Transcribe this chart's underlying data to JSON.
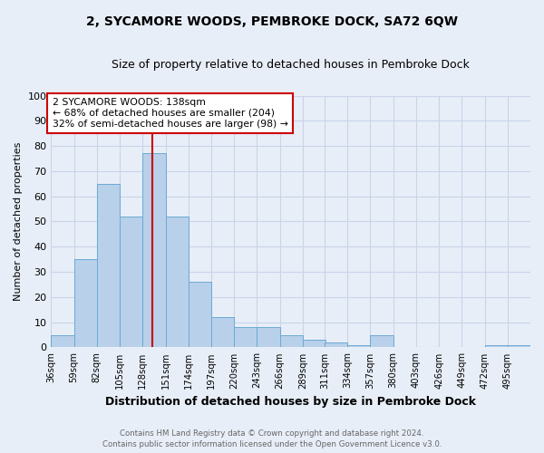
{
  "title": "2, SYCAMORE WOODS, PEMBROKE DOCK, SA72 6QW",
  "subtitle": "Size of property relative to detached houses in Pembroke Dock",
  "xlabel": "Distribution of detached houses by size in Pembroke Dock",
  "ylabel": "Number of detached properties",
  "footer_line1": "Contains HM Land Registry data © Crown copyright and database right 2024.",
  "footer_line2": "Contains public sector information licensed under the Open Government Licence v3.0.",
  "bins": [
    36,
    59,
    82,
    105,
    128,
    151,
    174,
    197,
    220,
    243,
    266,
    289,
    311,
    334,
    357,
    380,
    403,
    426,
    449,
    472,
    495
  ],
  "counts": [
    5,
    35,
    65,
    52,
    77,
    52,
    26,
    12,
    8,
    8,
    5,
    3,
    2,
    1,
    5,
    0,
    0,
    0,
    0,
    1,
    1
  ],
  "bar_color": "#b8d0ea",
  "bar_edge_color": "#6aaad4",
  "property_size": 138,
  "red_line_color": "#cc0000",
  "annotation_text_line1": "2 SYCAMORE WOODS: 138sqm",
  "annotation_text_line2": "← 68% of detached houses are smaller (204)",
  "annotation_text_line3": "32% of semi-detached houses are larger (98) →",
  "annotation_box_color": "#ffffff",
  "annotation_box_edge": "#cc0000",
  "ylim": [
    0,
    100
  ],
  "yticks": [
    0,
    10,
    20,
    30,
    40,
    50,
    60,
    70,
    80,
    90,
    100
  ],
  "background_color": "#e8eef8",
  "grid_color": "#c8d4e8",
  "title_fontsize": 10,
  "subtitle_fontsize": 9
}
